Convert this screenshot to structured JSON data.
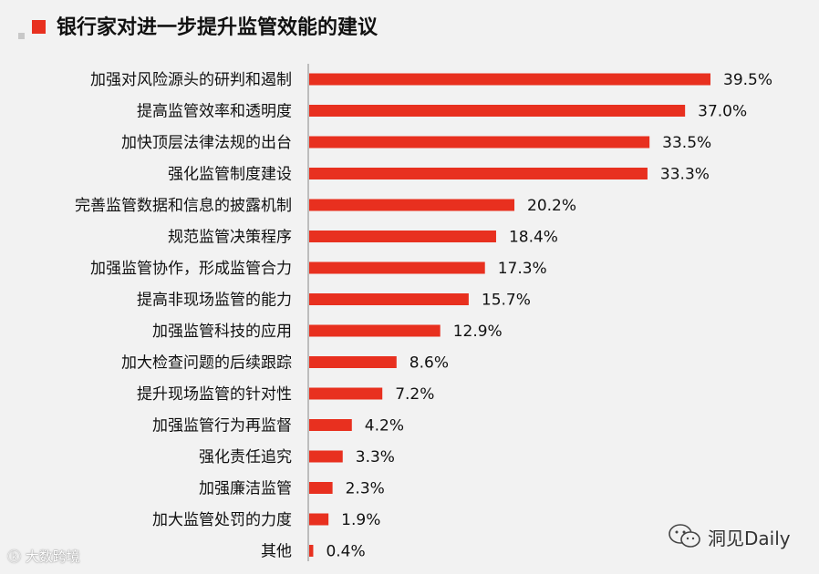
{
  "colors": {
    "bar": "#e8301f",
    "marker": "#e8301f"
  },
  "chart_data": {
    "type": "bar",
    "orientation": "horizontal",
    "title": "银行家对进一步提升监管效能的建议",
    "categories": [
      "加强对风险源头的研判和遏制",
      "提高监管效率和透明度",
      "加快顶层法律法规的出台",
      "强化监管制度建设",
      "完善监管数据和信息的披露机制",
      "规范监管决策程序",
      "加强监管协作，形成监管合力",
      "提高非现场监管的能力",
      "加强监管科技的应用",
      "加大检查问题的后续跟踪",
      "提升现场监管的针对性",
      "加强监管行为再监督",
      "强化责任追究",
      "加强廉洁监管",
      "加大监管处罚的力度",
      "其他"
    ],
    "values": [
      39.5,
      37.0,
      33.5,
      33.3,
      20.2,
      18.4,
      17.3,
      15.7,
      12.9,
      8.6,
      7.2,
      4.2,
      3.3,
      2.3,
      1.9,
      0.4
    ],
    "value_labels": [
      "39.5%",
      "37.0%",
      "33.5%",
      "33.3%",
      "20.2%",
      "18.4%",
      "17.3%",
      "15.7%",
      "12.9%",
      "8.6%",
      "7.2%",
      "4.2%",
      "3.3%",
      "2.3%",
      "1.9%",
      "0.4%"
    ],
    "unit": "%",
    "xlim": [
      0,
      40
    ],
    "grid": false,
    "legend": "none"
  },
  "watermarks": {
    "left_text": "大数跨境",
    "right_icon": "wechat-icon",
    "right_text": "洞见Daily"
  }
}
